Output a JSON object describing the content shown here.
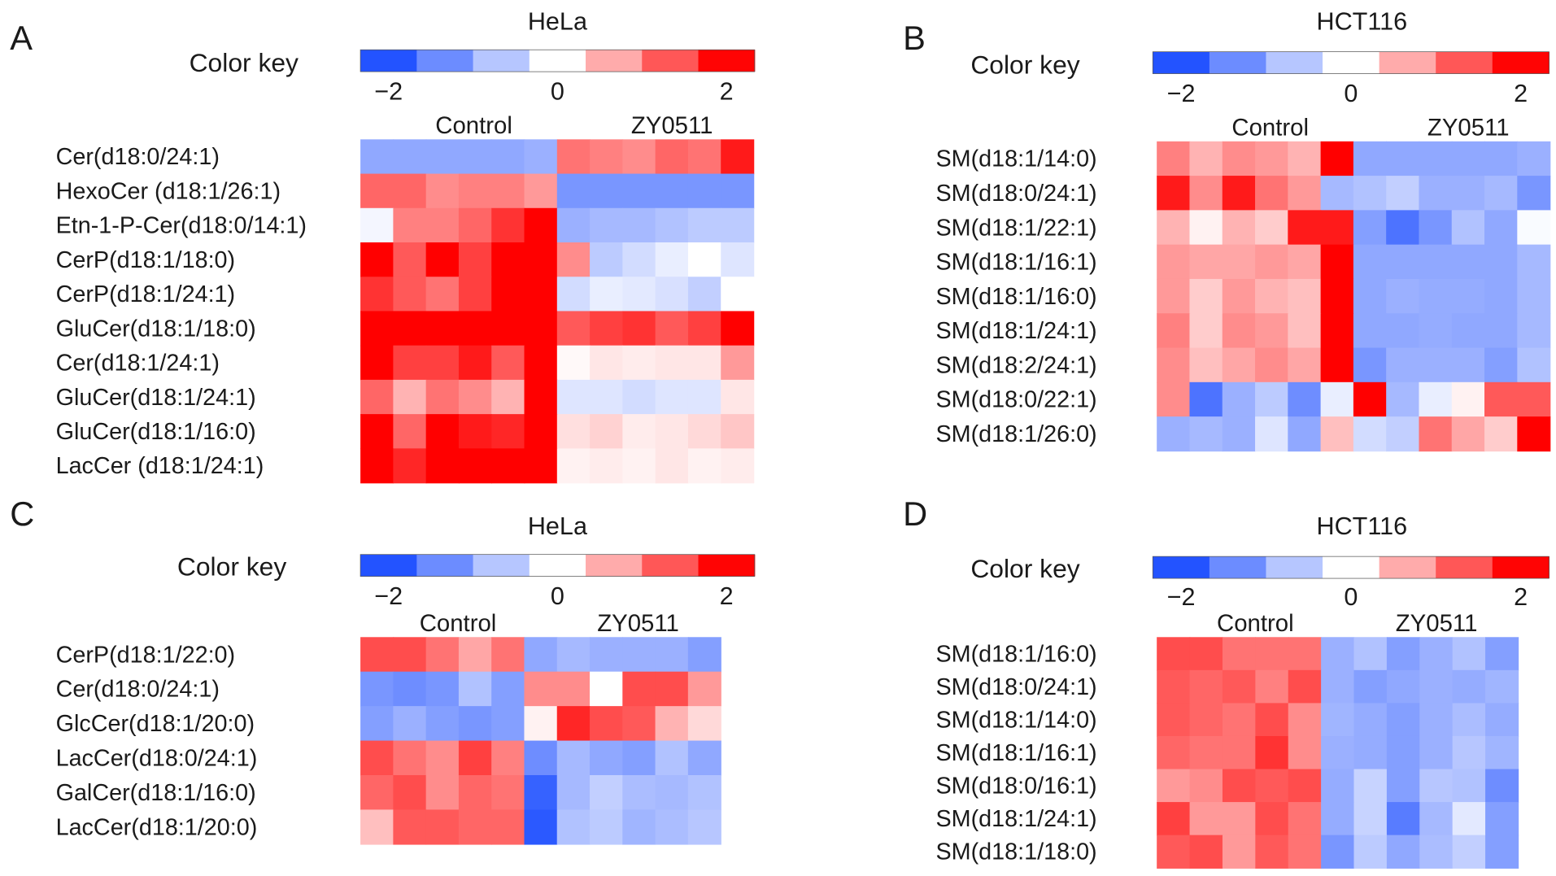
{
  "chart_data": [
    {
      "type": "heatmap",
      "panel": "A",
      "title": "HeLa",
      "color_key_label": "Color key",
      "color_key_ticks": [
        "−2",
        "0",
        "2"
      ],
      "color_range": [
        -2,
        2
      ],
      "colors": {
        "low": "#2050ff",
        "mid": "#ffffff",
        "high": "#ff0000"
      },
      "groups": [
        {
          "label": "Control",
          "n": 6
        },
        {
          "label": "ZY0511",
          "n": 6
        }
      ],
      "rows": [
        "Cer(d18:0/24:1)",
        "HexoCer (d18:1/26:1)",
        "Etn-1-P-Cer(d18:0/14:1)",
        "CerP(d18:1/18:0)",
        "CerP(d18:1/24:1)",
        "GluCer(d18:1/18:0)",
        "Cer(d18:1/24:1)",
        "GluCer(d18:1/24:1)",
        "GluCer(d18:1/16:0)",
        "LacCer (d18:1/24:1)"
      ],
      "values": [
        [
          -1.0,
          -1.0,
          -1.0,
          -1.0,
          -1.0,
          -0.9,
          1.1,
          1.0,
          0.9,
          1.2,
          1.1,
          1.8
        ],
        [
          1.2,
          1.2,
          0.9,
          1.0,
          1.0,
          0.8,
          -1.2,
          -1.2,
          -1.2,
          -1.2,
          -1.2,
          -1.2
        ],
        [
          -0.1,
          1.0,
          1.0,
          1.2,
          1.6,
          2.5,
          -0.9,
          -0.8,
          -0.8,
          -0.7,
          -0.6,
          -0.6
        ],
        [
          2.0,
          1.3,
          2.0,
          1.5,
          2.5,
          2.2,
          0.9,
          -0.6,
          -0.4,
          -0.2,
          0.0,
          -0.3
        ],
        [
          1.6,
          1.3,
          1.1,
          1.5,
          2.5,
          2.5,
          -0.4,
          -0.2,
          -0.25,
          -0.35,
          -0.55,
          0.0
        ],
        [
          2.5,
          2.5,
          2.5,
          2.5,
          2.5,
          2.5,
          1.3,
          1.5,
          1.6,
          1.3,
          1.5,
          2.5
        ],
        [
          2.5,
          1.5,
          1.5,
          1.8,
          1.3,
          2.5,
          0.05,
          0.2,
          0.15,
          0.2,
          0.2,
          0.8
        ],
        [
          1.2,
          0.6,
          1.1,
          0.9,
          0.6,
          2.5,
          -0.3,
          -0.3,
          -0.4,
          -0.3,
          -0.3,
          0.2
        ],
        [
          2.0,
          1.2,
          2.5,
          1.8,
          1.7,
          2.5,
          0.25,
          0.35,
          0.15,
          0.2,
          0.3,
          0.45
        ],
        [
          2.5,
          1.7,
          2.5,
          2.3,
          2.1,
          2.5,
          0.1,
          0.15,
          0.1,
          0.2,
          0.1,
          0.15
        ]
      ]
    },
    {
      "type": "heatmap",
      "panel": "B",
      "title": "HCT116",
      "color_key_label": "Color key",
      "color_key_ticks": [
        "−2",
        "0",
        "2"
      ],
      "color_range": [
        -2,
        2
      ],
      "colors": {
        "low": "#2050ff",
        "mid": "#ffffff",
        "high": "#ff0000"
      },
      "groups": [
        {
          "label": "Control",
          "n": 6
        },
        {
          "label": "ZY0511",
          "n": 6
        }
      ],
      "rows": [
        "SM(d18:1/14:0)",
        "SM(d18:0/24:1)",
        "SM(d18:1/22:1)",
        "SM(d18:1/16:1)",
        "SM(d18:1/16:0)",
        "SM(d18:1/24:1)",
        "SM(d18:2/24:1)",
        "SM(d18:0/22:1)",
        "SM(d18:1/26:0)"
      ],
      "values": [
        [
          1.0,
          0.6,
          0.9,
          0.8,
          0.6,
          2.5,
          -1.0,
          -1.0,
          -1.0,
          -1.0,
          -1.0,
          -0.9
        ],
        [
          1.8,
          0.9,
          1.8,
          1.1,
          0.8,
          -0.8,
          -0.7,
          -0.55,
          -0.9,
          -0.9,
          -0.8,
          -1.2
        ],
        [
          0.6,
          0.1,
          0.6,
          0.4,
          1.8,
          1.8,
          -1.1,
          -1.6,
          -1.2,
          -0.7,
          -1.0,
          -0.05
        ],
        [
          0.8,
          0.7,
          0.7,
          0.8,
          0.7,
          2.5,
          -1.0,
          -1.0,
          -1.0,
          -1.0,
          -1.0,
          -0.8
        ],
        [
          0.8,
          0.4,
          0.8,
          0.6,
          0.5,
          2.5,
          -1.0,
          -0.9,
          -0.95,
          -0.95,
          -1.0,
          -0.8
        ],
        [
          1.0,
          0.4,
          0.9,
          0.8,
          0.5,
          2.5,
          -1.0,
          -1.0,
          -0.95,
          -1.0,
          -1.0,
          -0.8
        ],
        [
          0.9,
          0.5,
          0.7,
          0.9,
          0.7,
          2.5,
          -1.2,
          -0.9,
          -0.9,
          -0.9,
          -1.1,
          -0.7
        ],
        [
          0.9,
          -1.6,
          -0.9,
          -0.6,
          -1.3,
          -0.2,
          2.5,
          -0.8,
          -0.2,
          0.1,
          1.3,
          1.3
        ],
        [
          -0.9,
          -0.8,
          -0.9,
          -0.3,
          -1.0,
          0.5,
          -0.4,
          -0.55,
          1.1,
          0.7,
          0.4,
          2.5
        ]
      ]
    },
    {
      "type": "heatmap",
      "panel": "C",
      "title": "HeLa",
      "color_key_label": "Color key",
      "color_key_ticks": [
        "−2",
        "0",
        "2"
      ],
      "color_range": [
        -2,
        2
      ],
      "colors": {
        "low": "#2050ff",
        "mid": "#ffffff",
        "high": "#ff0000"
      },
      "groups": [
        {
          "label": "Control",
          "n": 5
        },
        {
          "label": "ZY0511",
          "n": 6
        }
      ],
      "rows": [
        "CerP(d18:1/22:0)",
        "Cer(d18:0/24:1)",
        "GlcCer(d18:1/20:0)",
        "LacCer(d18:0/24:1)",
        "GalCer(d18:1/16:0)",
        "LacCer(d18:1/20:0)"
      ],
      "values": [
        [
          1.4,
          1.4,
          1.1,
          0.7,
          1.1,
          -1.0,
          -0.8,
          -0.9,
          -0.9,
          -0.9,
          -1.1
        ],
        [
          -1.2,
          -1.3,
          -1.2,
          -0.7,
          -1.1,
          0.9,
          0.9,
          0.0,
          1.4,
          1.4,
          0.8
        ],
        [
          -1.1,
          -0.9,
          -1.1,
          -1.2,
          -1.1,
          0.1,
          1.7,
          1.4,
          1.3,
          0.6,
          0.3
        ],
        [
          1.4,
          1.1,
          0.9,
          1.5,
          1.0,
          -1.3,
          -0.8,
          -1.0,
          -1.1,
          -0.7,
          -1.0
        ],
        [
          1.2,
          1.4,
          0.9,
          1.2,
          1.1,
          -1.8,
          -0.8,
          -0.55,
          -0.75,
          -0.8,
          -0.7
        ],
        [
          0.5,
          1.3,
          1.3,
          1.2,
          1.2,
          -1.9,
          -0.7,
          -0.6,
          -0.85,
          -0.75,
          -0.65
        ]
      ]
    },
    {
      "type": "heatmap",
      "panel": "D",
      "title": "HCT116",
      "color_key_label": "Color key",
      "color_key_ticks": [
        "−2",
        "0",
        "2"
      ],
      "color_range": [
        -2,
        2
      ],
      "colors": {
        "low": "#2050ff",
        "mid": "#ffffff",
        "high": "#ff0000"
      },
      "groups": [
        {
          "label": "Control",
          "n": 5
        },
        {
          "label": "ZY0511",
          "n": 6
        }
      ],
      "rows": [
        "SM(d18:1/16:0)",
        "SM(d18:0/24:1)",
        "SM(d18:1/14:0)",
        "SM(d18:1/16:1)",
        "SM(d18:0/16:1)",
        "SM(d18:1/24:1)",
        "SM(d18:1/18:0)"
      ],
      "values": [
        [
          1.4,
          1.4,
          1.1,
          1.1,
          1.1,
          -0.9,
          -0.7,
          -1.1,
          -0.9,
          -0.7,
          -1.1
        ],
        [
          1.3,
          1.2,
          1.3,
          1.0,
          1.4,
          -0.9,
          -1.1,
          -1.0,
          -0.9,
          -0.95,
          -0.85
        ],
        [
          1.3,
          1.2,
          1.1,
          1.4,
          0.9,
          -0.85,
          -0.95,
          -1.1,
          -0.9,
          -0.75,
          -0.95
        ],
        [
          1.2,
          1.1,
          1.1,
          1.6,
          0.9,
          -0.9,
          -0.95,
          -1.1,
          -0.9,
          -0.65,
          -0.85
        ],
        [
          0.8,
          0.9,
          1.4,
          1.3,
          1.4,
          -0.95,
          -0.5,
          -1.1,
          -0.65,
          -0.7,
          -1.3
        ],
        [
          1.5,
          0.8,
          0.8,
          1.4,
          1.1,
          -0.95,
          -0.5,
          -1.5,
          -0.8,
          -0.25,
          -1.1
        ],
        [
          1.3,
          1.4,
          0.8,
          1.3,
          1.1,
          -1.2,
          -0.6,
          -1.0,
          -0.75,
          -0.55,
          -1.1
        ]
      ]
    }
  ]
}
